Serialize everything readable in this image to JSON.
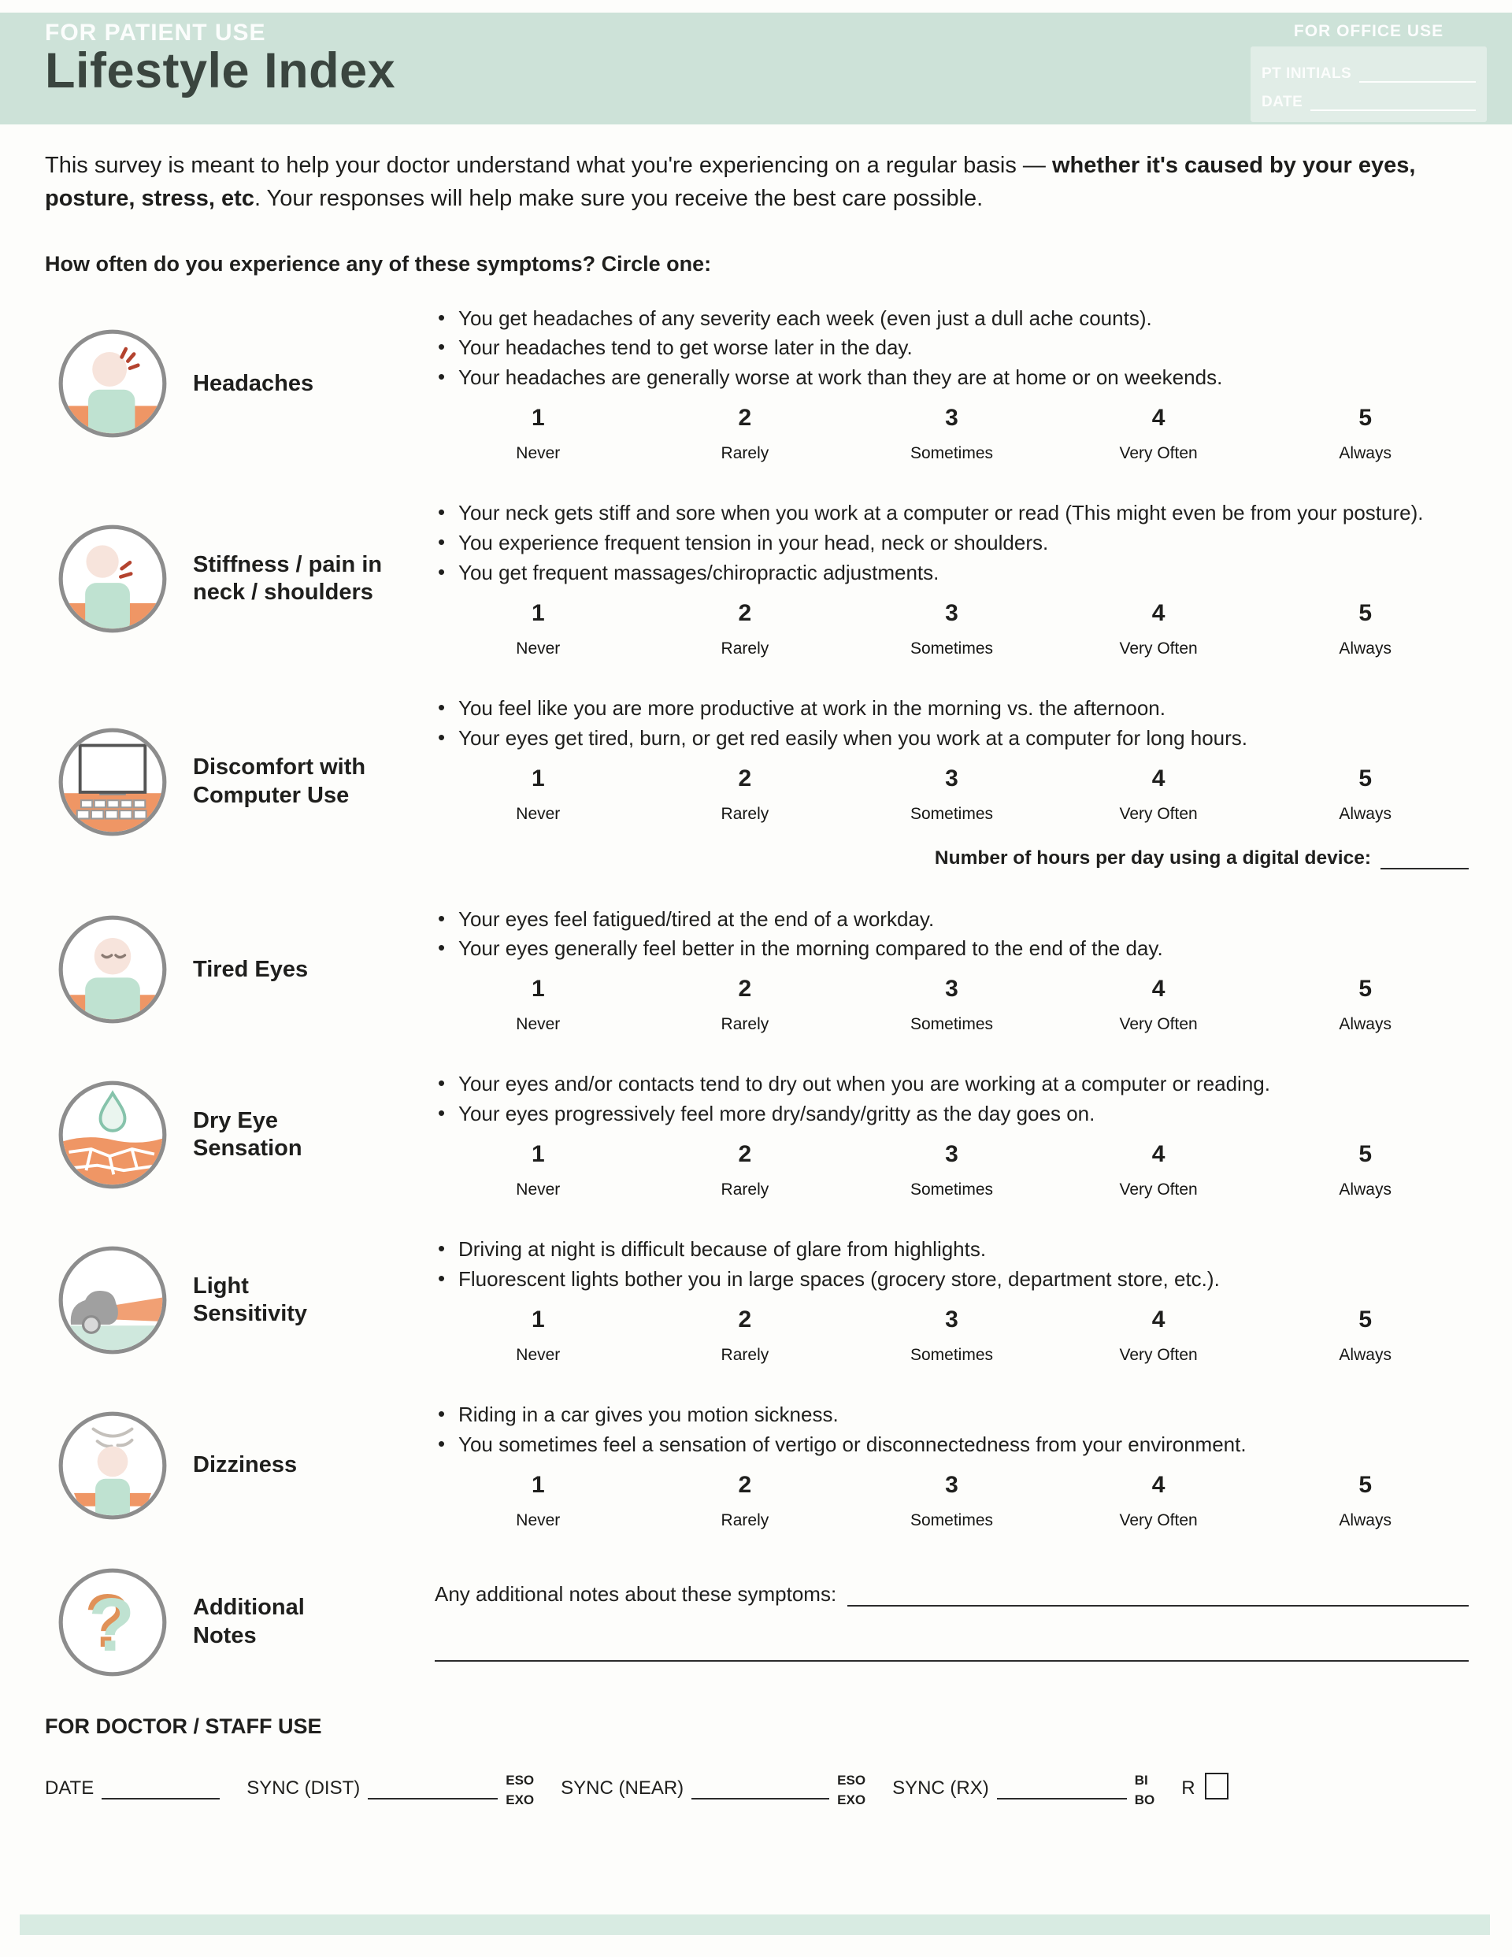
{
  "header": {
    "patient_label": "FOR PATIENT USE",
    "title": "Lifestyle Index",
    "office": {
      "label": "FOR OFFICE USE",
      "fields": [
        {
          "label": "PT INITIALS"
        },
        {
          "label": "DATE"
        }
      ]
    }
  },
  "intro": {
    "text_start": "This survey is meant to help your doctor understand what you're experiencing on a regular basis — ",
    "text_bold": "whether it's caused by your eyes, posture, stress, etc",
    "text_end": ". Your responses will help make sure you receive the best care possible."
  },
  "question_heading": "How often do you experience any of these symptoms? Circle one:",
  "scale": [
    {
      "value": "1",
      "label": "Never"
    },
    {
      "value": "2",
      "label": "Rarely"
    },
    {
      "value": "3",
      "label": "Sometimes"
    },
    {
      "value": "4",
      "label": "Very Often"
    },
    {
      "value": "5",
      "label": "Always"
    }
  ],
  "sections": [
    {
      "id": "headaches",
      "icon": "headache-icon",
      "title": "Headaches",
      "bullets": [
        "You get headaches of any severity each week (even just a dull ache counts).",
        "Your headaches tend to get worse later in the day.",
        "Your headaches are generally worse at work than they are at home or on weekends."
      ],
      "has_scale": true
    },
    {
      "id": "stiffness-neck-shoulders",
      "icon": "neck-pain-icon",
      "title": "Stiffness / pain in\nneck / shoulders",
      "bullets": [
        "Your neck gets stiff and sore when you work at a computer or read (This might even be from your posture).",
        "You experience frequent tension in your head, neck or shoulders.",
        "You get frequent massages/chiropractic adjustments."
      ],
      "has_scale": true
    },
    {
      "id": "computer-discomfort",
      "icon": "computer-icon",
      "title": "Discomfort with\nComputer Use",
      "bullets": [
        "You feel like you are more productive at work in the morning vs. the afternoon.",
        "Your eyes get tired, burn, or get red easily when you work at a computer for long hours."
      ],
      "has_scale": true,
      "extra_label": "Number of hours per day using a digital device:"
    },
    {
      "id": "tired-eyes",
      "icon": "tired-eyes-icon",
      "title": "Tired Eyes",
      "bullets": [
        "Your eyes feel fatigued/tired at the end of a workday.",
        "Your eyes generally feel better in the morning compared to the end of the day."
      ],
      "has_scale": true
    },
    {
      "id": "dry-eye",
      "icon": "dry-eye-icon",
      "title": "Dry Eye\nSensation",
      "bullets": [
        "Your eyes and/or contacts tend to dry out when you are working at a computer or reading.",
        "Your eyes progressively feel more dry/sandy/gritty as the day goes on."
      ],
      "has_scale": true
    },
    {
      "id": "light-sensitivity",
      "icon": "car-headlight-icon",
      "title": "Light\nSensitivity",
      "bullets": [
        "Driving at night is difficult because of glare from highlights.",
        "Fluorescent lights bother you in large spaces (grocery store, department store, etc.)."
      ],
      "has_scale": true
    },
    {
      "id": "dizziness",
      "icon": "dizziness-icon",
      "title": "Dizziness",
      "bullets": [
        "Riding in a car gives you motion sickness.",
        "You sometimes feel a sensation of vertigo or disconnectedness from your environment."
      ],
      "has_scale": true
    },
    {
      "id": "additional-notes",
      "icon": "question-mark-icon",
      "title": "Additional\nNotes",
      "type": "notes",
      "notes_label": "Any additional notes about these symptoms:"
    }
  ],
  "staff": {
    "heading": "FOR DOCTOR / STAFF USE",
    "fields": [
      {
        "label": "DATE"
      },
      {
        "label": "SYNC (DIST)",
        "suffix": [
          "ESO",
          "EXO"
        ]
      },
      {
        "label": "SYNC (NEAR)",
        "suffix": [
          "ESO",
          "EXO"
        ]
      },
      {
        "label": "SYNC (RX)",
        "suffix": [
          "BI",
          "BO"
        ]
      },
      {
        "label": "R",
        "checkbox": true
      }
    ]
  },
  "colors": {
    "band_mint": "#cde2d8",
    "accent_orange": "#ef9665",
    "accent_mint": "#bfe2d1",
    "bottom_bar_mint": "#d8ebe2"
  }
}
